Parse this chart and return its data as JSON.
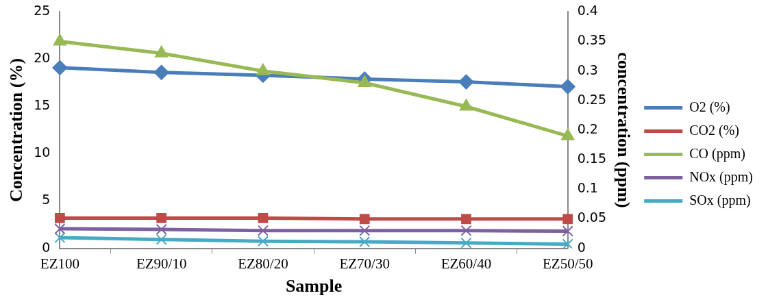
{
  "chart_data": {
    "type": "line",
    "xlabel": "Sample",
    "ylabel": "Concentration (%)",
    "y2label": "concentration (ppm)",
    "categories": [
      "EZ100",
      "EZ90/10",
      "EZ80/20",
      "EZ70/30",
      "EZ60/40",
      "EZ50/50"
    ],
    "series": [
      {
        "name": "O2 (%)",
        "color": "#4a7ebb",
        "marker": "diamond",
        "values": [
          19.1,
          18.6,
          18.3,
          17.9,
          17.6,
          17.1
        ]
      },
      {
        "name": "CO2 (%)",
        "color": "#be4b48",
        "marker": "square",
        "values": [
          3.2,
          3.2,
          3.2,
          3.1,
          3.1,
          3.1
        ]
      },
      {
        "name": "CO (ppm)",
        "color": "#98b954",
        "marker": "triangle",
        "axis": "y2",
        "values": [
          0.35,
          0.33,
          0.3,
          0.28,
          0.24,
          0.19
        ]
      },
      {
        "name": "NOx (ppm)",
        "color": "#7d60a0",
        "marker": "cross",
        "axis": "y2",
        "values": [
          0.033,
          0.032,
          0.03,
          0.03,
          0.03,
          0.029
        ]
      },
      {
        "name": "SOx (ppm)",
        "color": "#46aac5",
        "marker": "cross",
        "axis": "y2",
        "values": [
          0.018,
          0.015,
          0.012,
          0.011,
          0.009,
          0.007
        ]
      }
    ],
    "ylim": [
      0,
      25
    ],
    "yticks": [
      0,
      5,
      10,
      15,
      20,
      25
    ],
    "y2lim": [
      0,
      0.4
    ],
    "y2ticks": [
      0,
      0.05,
      0.1,
      0.15,
      0.2,
      0.25,
      0.3,
      0.35,
      0.4
    ],
    "grid": false,
    "legend": "right"
  }
}
